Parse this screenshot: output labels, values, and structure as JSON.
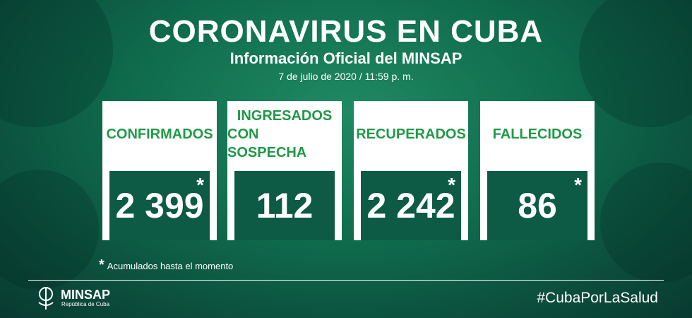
{
  "header": {
    "title": "CORONAVIRUS EN CUBA",
    "subtitle": "Información Oficial del MINSAP",
    "date": "7 de julio de 2020 / 11:59 p. m."
  },
  "cards": [
    {
      "label": [
        "CONFIRMADOS"
      ],
      "value": "2 399",
      "mark": "*"
    },
    {
      "label": [
        "INGRESADOS",
        "CON SOSPECHA"
      ],
      "value": "112"
    },
    {
      "label": [
        "RECUPERADOS"
      ],
      "value": "2 242",
      "mark": "*"
    },
    {
      "label": [
        "FALLECIDOS"
      ],
      "value": "86",
      "mark": "*"
    }
  ],
  "footnote": {
    "mark": "*",
    "text": "Acumulados hasta el momento"
  },
  "footer": {
    "logo": "MINSAP",
    "logo_sub": "República de Cuba",
    "hashtag": "#CubaPorLaSalud"
  }
}
